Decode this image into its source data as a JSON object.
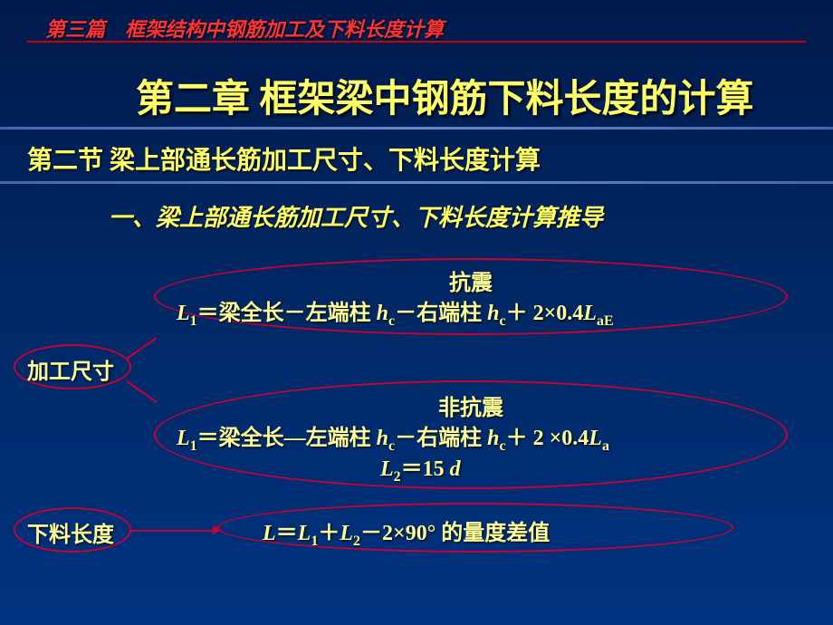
{
  "breadcrumb": "第三篇　框架结构中钢筋加工及下料长度计算",
  "chapter_title": "第二章  框架梁中钢筋下料长度的计算",
  "section_title": "第二节  梁上部通长筋加工尺寸、下料长度计算",
  "subsection_title": "一、梁上部通长筋加工尺寸、下料长度计算推导",
  "labels": {
    "processing_size": "加工尺寸",
    "cutting_length": "下料长度"
  },
  "formulas": {
    "seismic_title": "抗震",
    "seismic_body_prefix": "L",
    "seismic_body_sub1": "1",
    "seismic_body_mid": "＝梁全长－左端柱 ",
    "seismic_hc1": "h",
    "seismic_hc1_sub": "c",
    "seismic_body_mid2": "－右端柱 ",
    "seismic_hc2": "h",
    "seismic_hc2_sub": "c",
    "seismic_body_end": "＋ 2×0.4",
    "seismic_lae": "L",
    "seismic_lae_sub": "aE",
    "nonseismic_title": "非抗震",
    "nonseismic_body_prefix": "L",
    "nonseismic_body_sub1": "1",
    "nonseismic_body_mid": "＝梁全长—左端柱 ",
    "nonseismic_hc1": "h",
    "nonseismic_hc1_sub": "c",
    "nonseismic_body_mid2": "－右端柱 ",
    "nonseismic_hc2": "h",
    "nonseismic_hc2_sub": "c",
    "nonseismic_body_end": "＋ 2 ×0.4",
    "nonseismic_la": "L",
    "nonseismic_la_sub": "a",
    "l2_prefix": "L",
    "l2_sub": "2",
    "l2_body": "＝15 ",
    "l2_d": "d",
    "final_prefix": "L",
    "final_eq": "＝",
    "final_l1": "L",
    "final_l1_sub": "1",
    "final_plus": "＋",
    "final_l2": "L",
    "final_l2_sub": "2",
    "final_rest": "－2×90° 的量度差值"
  },
  "colors": {
    "background_top": "#001a4d",
    "background_bottom": "#003380",
    "accent_red": "#cc0033",
    "text_yellow": "#ffff66",
    "text_red": "#ff3333",
    "divider": "#6688cc"
  }
}
